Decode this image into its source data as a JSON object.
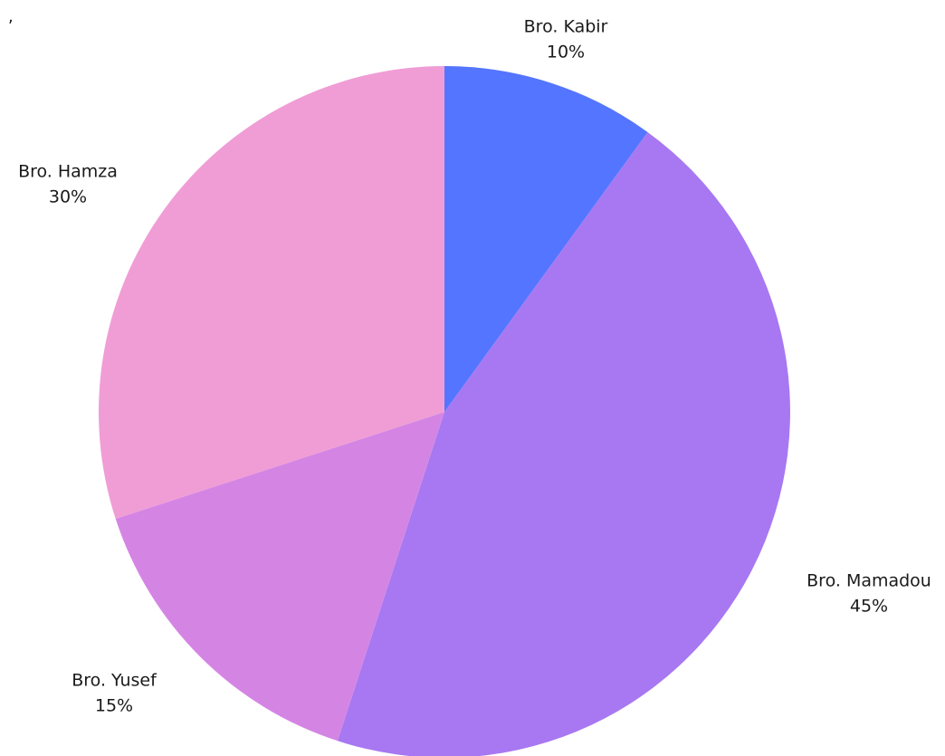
{
  "stray_mark": ",",
  "chart_data": {
    "type": "pie",
    "start_angle_deg": 0,
    "direction": "clockwise",
    "slices": [
      {
        "name": "Bro. Kabir",
        "value": 10,
        "value_label": "10%",
        "color": "#5475ff"
      },
      {
        "name": "Bro. Mamadou",
        "value": 45,
        "value_label": "45%",
        "color": "#a778f1"
      },
      {
        "name": "Bro. Yusef",
        "value": 15,
        "value_label": "15%",
        "color": "#d485e3"
      },
      {
        "name": "Bro. Hamza",
        "value": 30,
        "value_label": "30%",
        "color": "#f09dd6"
      }
    ]
  }
}
